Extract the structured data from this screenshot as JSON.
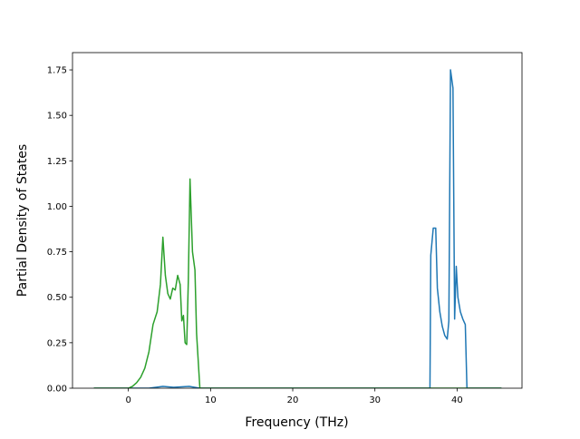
{
  "chart_data": {
    "type": "line",
    "x_label": "Frequency (THz)",
    "y_label": "Partial Density of States",
    "xlim": [
      -6.8,
      47.9
    ],
    "ylim": [
      0,
      1.845
    ],
    "xticks": [
      0,
      10,
      20,
      30,
      40
    ],
    "yticks": [
      {
        "value": 0,
        "label": "0.00"
      },
      {
        "value": 0.25,
        "label": "0.25"
      },
      {
        "value": 0.5,
        "label": "0.50"
      },
      {
        "value": 0.75,
        "label": "0.75"
      },
      {
        "value": 1.0,
        "label": "1.00"
      },
      {
        "value": 1.25,
        "label": "1.25"
      },
      {
        "value": 1.5,
        "label": "1.50"
      },
      {
        "value": 1.75,
        "label": "1.75"
      }
    ],
    "series": [
      {
        "color": "#1f77b4",
        "x": [
          -4.2,
          2.5,
          4.2,
          5.5,
          7.4,
          8.7,
          36.7,
          36.8,
          37.1,
          37.4,
          37.6,
          37.9,
          38.2,
          38.5,
          38.8,
          39.0,
          39.2,
          39.5,
          39.7,
          39.9,
          40.1,
          40.4,
          40.7,
          41.0,
          41.2,
          45.4
        ],
        "values": [
          0,
          0,
          0.01,
          0.005,
          0.01,
          0,
          0,
          0.73,
          0.88,
          0.88,
          0.55,
          0.42,
          0.34,
          0.29,
          0.27,
          0.37,
          1.75,
          1.65,
          0.38,
          0.67,
          0.5,
          0.42,
          0.38,
          0.35,
          0,
          0
        ]
      },
      {
        "color": "#2ca02c",
        "x": [
          -4.2,
          0,
          0.5,
          1,
          1.5,
          2,
          2.5,
          3,
          3.5,
          3.9,
          4.2,
          4.5,
          4.8,
          5.1,
          5.4,
          5.7,
          6.0,
          6.3,
          6.5,
          6.7,
          6.9,
          7.1,
          7.3,
          7.5,
          7.8,
          8.1,
          8.3,
          8.7,
          45.4
        ],
        "values": [
          0,
          0,
          0.01,
          0.03,
          0.06,
          0.11,
          0.2,
          0.35,
          0.42,
          0.57,
          0.83,
          0.62,
          0.52,
          0.49,
          0.55,
          0.54,
          0.62,
          0.57,
          0.37,
          0.4,
          0.25,
          0.24,
          0.6,
          1.15,
          0.75,
          0.65,
          0.3,
          0,
          0
        ]
      }
    ]
  }
}
